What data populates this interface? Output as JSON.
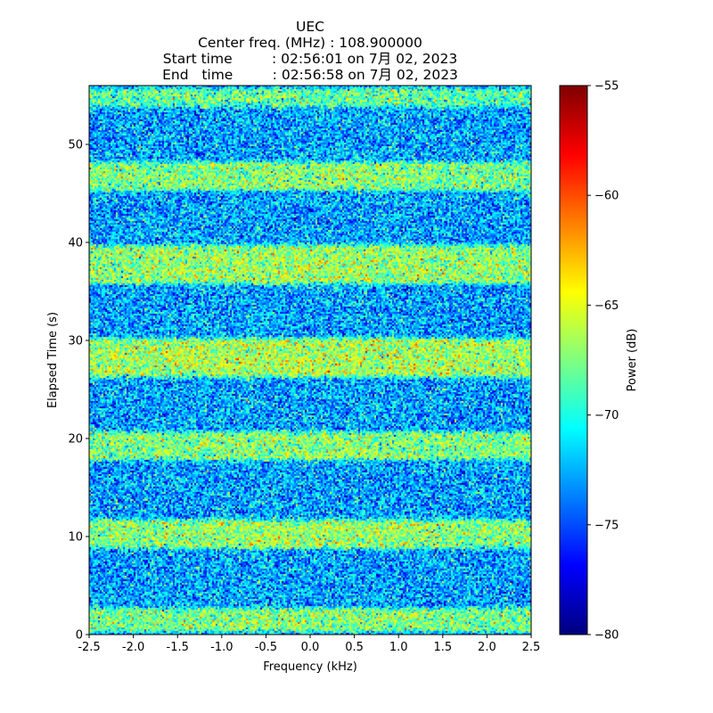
{
  "chart_data": {
    "type": "heatmap",
    "title_lines": [
      "UEC",
      "Center freq. (MHz) : 108.900000",
      "Start time         : 02:56:01 on 7月 02, 2023",
      "End   time         : 02:56:58 on 7月 02, 2023"
    ],
    "xlabel": "Frequency (kHz)",
    "ylabel": "Elapsed Time (s)",
    "xlim": [
      -2.5,
      2.5
    ],
    "ylim": [
      0,
      56
    ],
    "x_ticks": [
      -2.5,
      -2.0,
      -1.5,
      -1.0,
      -0.5,
      0.0,
      0.5,
      1.0,
      1.5,
      2.0,
      2.5
    ],
    "x_tick_labels": [
      "-2.5",
      "-2.0",
      "-1.5",
      "-1.0",
      "-0.5",
      "0.0",
      "0.5",
      "1.0",
      "1.5",
      "2.0",
      "2.5"
    ],
    "y_ticks": [
      0,
      10,
      20,
      30,
      40,
      50
    ],
    "y_tick_labels": [
      "0",
      "10",
      "20",
      "30",
      "40",
      "50"
    ],
    "colormap": "jet",
    "colorbar": {
      "label": "Power (dB)",
      "vmin": -80,
      "vmax": -55,
      "ticks": [
        -55,
        -60,
        -65,
        -70,
        -75,
        -80
      ],
      "tick_labels": [
        "−55",
        "−60",
        "−65",
        "−70",
        "−75",
        "−80"
      ]
    },
    "grid": false,
    "stripes": {
      "note": "alternating higher-power bands (time ranges in seconds, mean power dB)",
      "strong_bands": [
        {
          "t0": 0,
          "t1": 3,
          "mean": -68
        },
        {
          "t0": 8.5,
          "t1": 12,
          "mean": -67.5
        },
        {
          "t0": 17.5,
          "t1": 21,
          "mean": -68
        },
        {
          "t0": 26,
          "t1": 30.5,
          "mean": -67
        },
        {
          "t0": 35.5,
          "t1": 40,
          "mean": -67.5
        },
        {
          "t0": 45,
          "t1": 48.5,
          "mean": -68
        },
        {
          "t0": 53.5,
          "t1": 56,
          "mean": -69
        }
      ],
      "background_mean": -73
    }
  }
}
